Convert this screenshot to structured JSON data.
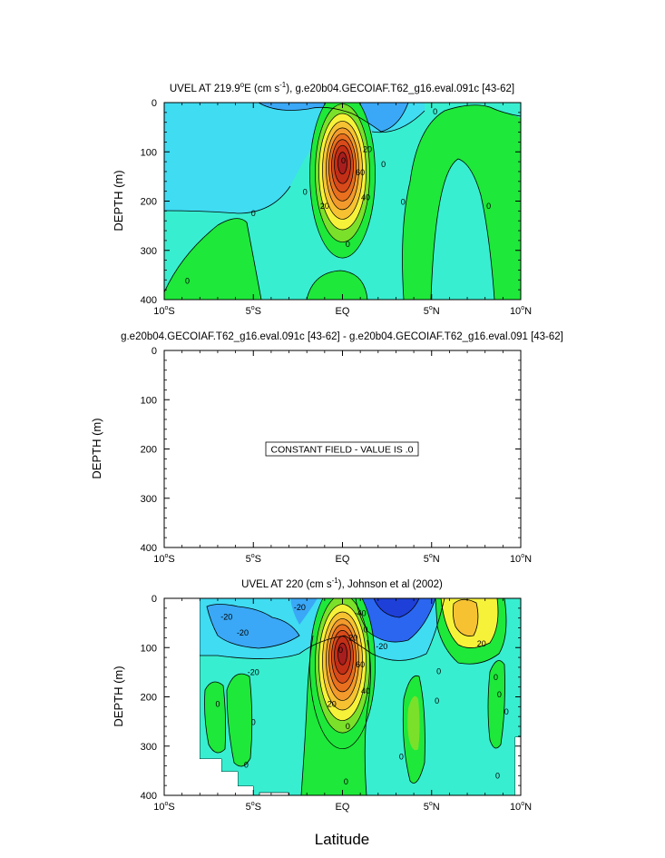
{
  "x_axis_title": "Latitude",
  "chart_data": [
    {
      "type": "heatmap",
      "title": "UVEL AT 219.9°E (cm s⁻¹), g.e20b04.GECOIAF.T62_g16.eval.091c [43-62]",
      "title_parts": {
        "lead": "UVEL AT 219.9",
        "deg": "o",
        "mid": "E (cm s",
        "sup": "-1",
        "tail": "), g.e20b04.GECOIAF.T62_g16.eval.091c [43-62]"
      },
      "ylabel": "DEPTH (m)",
      "xlim": [
        -10,
        10
      ],
      "ylim": [
        400,
        0
      ],
      "yticks": [
        0,
        100,
        200,
        300,
        400
      ],
      "contour_labels": [
        {
          "text": "0",
          "x": -5,
          "y": 225
        },
        {
          "text": "0",
          "x": -8.7,
          "y": 362
        },
        {
          "text": "0",
          "x": -2.1,
          "y": 182
        },
        {
          "text": "0",
          "x": 0.3,
          "y": 288
        },
        {
          "text": "0",
          "x": 5.2,
          "y": 18
        },
        {
          "text": "0",
          "x": 3.4,
          "y": 202
        },
        {
          "text": "0",
          "x": 8.2,
          "y": 210
        },
        {
          "text": "0",
          "x": 2.3,
          "y": 125
        },
        {
          "text": "20",
          "x": 1.4,
          "y": 95
        },
        {
          "text": "60",
          "x": 1.0,
          "y": 142
        },
        {
          "text": "40",
          "x": 1.3,
          "y": 193
        },
        {
          "text": "20",
          "x": -1.0,
          "y": 210
        },
        {
          "text": "0",
          "x": 0.05,
          "y": 118
        }
      ],
      "jet": {
        "lat": 0,
        "depth": 120,
        "max": 100
      }
    },
    {
      "type": "heatmap",
      "title": "g.e20b04.GECOIAF.T62_g16.eval.091c [43-62] - g.e20b04.GECOIAF.T62_g16.eval.091 [43-62]",
      "ylabel": "DEPTH (m)",
      "xlim": [
        -10,
        10
      ],
      "ylim": [
        400,
        0
      ],
      "yticks": [
        0,
        100,
        200,
        300,
        400
      ],
      "annotation": "CONSTANT FIELD - VALUE IS .0",
      "constant_value": 0
    },
    {
      "type": "heatmap",
      "title": "UVEL AT 220 (cm s⁻¹), Johnson et al (2002)",
      "title_parts": {
        "lead": "UVEL AT 220 (cm s",
        "sup": "-1",
        "tail": "), Johnson et al (2002)"
      },
      "ylabel": "DEPTH (m)",
      "xlim": [
        -10,
        10
      ],
      "ylim": [
        400,
        0
      ],
      "yticks": [
        0,
        100,
        200,
        300,
        400
      ],
      "contour_labels": [
        {
          "text": "-20",
          "x": -6.5,
          "y": 38
        },
        {
          "text": "-20",
          "x": -5.6,
          "y": 70
        },
        {
          "text": "-20",
          "x": -2.4,
          "y": 18
        },
        {
          "text": "-20",
          "x": -5.0,
          "y": 150
        },
        {
          "text": "-40",
          "x": 1.0,
          "y": 30
        },
        {
          "text": "-20",
          "x": 2.2,
          "y": 98
        },
        {
          "text": "0",
          "x": 1.3,
          "y": 64
        },
        {
          "text": "20",
          "x": 0.6,
          "y": 80
        },
        {
          "text": "60",
          "x": 1.0,
          "y": 135
        },
        {
          "text": "40",
          "x": 1.3,
          "y": 188
        },
        {
          "text": "20",
          "x": -0.6,
          "y": 215
        },
        {
          "text": "20",
          "x": 7.8,
          "y": 92
        },
        {
          "text": "0",
          "x": -7.0,
          "y": 215
        },
        {
          "text": "0",
          "x": -5.0,
          "y": 252
        },
        {
          "text": "0",
          "x": 5.3,
          "y": 208
        },
        {
          "text": "0",
          "x": 8.6,
          "y": 160
        },
        {
          "text": "0",
          "x": 8.8,
          "y": 195
        },
        {
          "text": "0",
          "x": 9.2,
          "y": 230
        },
        {
          "text": "0",
          "x": 3.3,
          "y": 322
        },
        {
          "text": "0",
          "x": 8.7,
          "y": 360
        },
        {
          "text": "0",
          "x": -5.4,
          "y": 338
        },
        {
          "text": "0",
          "x": 0.3,
          "y": 260
        },
        {
          "text": "0",
          "x": 0.2,
          "y": 372
        },
        {
          "text": "0",
          "x": 5.4,
          "y": 148
        },
        {
          "text": "0",
          "x": -0.1,
          "y": 105
        }
      ],
      "jet": {
        "lat": 0,
        "depth": 110,
        "max": 100
      },
      "data_extent": {
        "lat_min": -8,
        "lat_max": 10
      }
    }
  ],
  "x_tick_labels": [
    {
      "pre": "10",
      "deg": "o",
      "suf": "S"
    },
    {
      "pre": "5",
      "deg": "o",
      "suf": "S"
    },
    {
      "pre": "EQ",
      "deg": "",
      "suf": ""
    },
    {
      "pre": "5",
      "deg": "o",
      "suf": "N"
    },
    {
      "pre": "10",
      "deg": "o",
      "suf": "N"
    }
  ],
  "colors": {
    "neg40": "#1e3fd8",
    "neg30": "#2a66f0",
    "neg20": "#3aa8f6",
    "neg10": "#3fdcf2",
    "zero": "#38eed0",
    "pos10": "#1ee83a",
    "pos20": "#7be02a",
    "pos30": "#f6f23a",
    "pos40": "#f6c232",
    "pos50": "#f29a2c",
    "pos60": "#e8701e",
    "pos70": "#d84a1a",
    "pos80": "#c22e16",
    "pos90": "#a81e1e"
  }
}
